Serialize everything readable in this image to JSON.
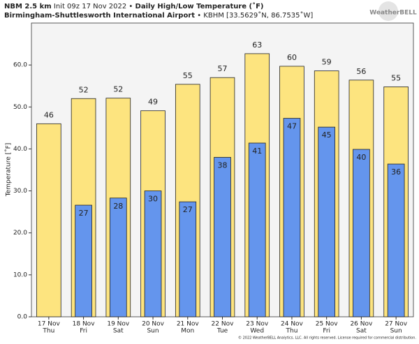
{
  "header": {
    "model": "NBM 2.5 km",
    "init": "Init 09z 17 Nov 2022 •",
    "product": "Daily High/Low Temperature (˚F)",
    "station": "Birmingham-Shuttlesworth International Airport",
    "station_info": "• KBHM [33.5629˚N, 86.7535˚W]",
    "logo": "WeatherBELL",
    "footer": "© 2022 WeatherBELL Analytics, LLC. All rights reserved. License required for commercial distribution."
  },
  "chart_data": {
    "type": "bar",
    "ylabel": "Temperature [˚F]",
    "categories": [
      "17 Nov",
      "18 Nov",
      "19 Nov",
      "20 Nov",
      "21 Nov",
      "22 Nov",
      "23 Nov",
      "24 Nov",
      "25 Nov",
      "26 Nov",
      "27 Nov"
    ],
    "category_sublabels": [
      "Thu",
      "Fri",
      "Sat",
      "Sun",
      "Mon",
      "Tue",
      "Wed",
      "Thu",
      "Fri",
      "Sat",
      "Sun"
    ],
    "series": [
      {
        "name": "High",
        "color": "#fde47f",
        "values": [
          46.0,
          52.0,
          52.1,
          49.1,
          55.4,
          57.0,
          62.7,
          59.7,
          58.6,
          56.4,
          54.8
        ],
        "value_labels": [
          "46",
          "52",
          "52",
          "49",
          "55",
          "57",
          "63",
          "60",
          "59",
          "56",
          "55"
        ]
      },
      {
        "name": "Low",
        "color": "#6495ed",
        "values": [
          null,
          26.6,
          28.3,
          30.0,
          27.4,
          38.0,
          41.4,
          47.3,
          45.2,
          39.9,
          36.4
        ],
        "value_labels": [
          null,
          "27",
          "28",
          "30",
          "27",
          "38",
          "41",
          "47",
          "45",
          "40",
          "36"
        ]
      }
    ],
    "ylim": [
      0,
      70
    ],
    "yticks": [
      {
        "value": 0,
        "label": "0.0"
      },
      {
        "value": 10,
        "label": "10.0"
      },
      {
        "value": 20,
        "label": "20.0"
      },
      {
        "value": 30,
        "label": "30.0"
      },
      {
        "value": 40,
        "label": "40.0"
      },
      {
        "value": 50,
        "label": "50.0"
      },
      {
        "value": 60,
        "label": "60.0"
      }
    ]
  }
}
